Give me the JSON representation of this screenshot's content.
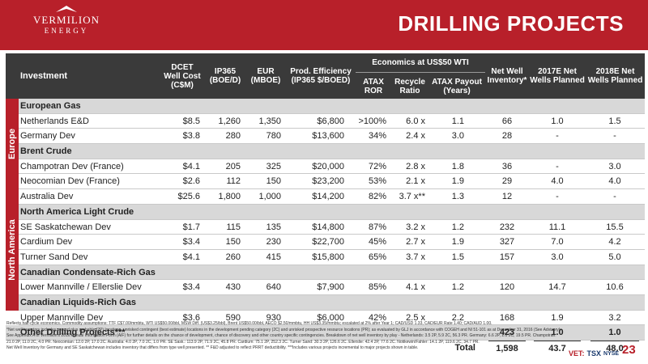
{
  "brand": {
    "name": "VERMILION",
    "sub": "ENERGY"
  },
  "title": "DRILLING PROJECTS",
  "headers": {
    "investment": "Investment",
    "dcet": "DCET\nWell Cost\n(C$M)",
    "ip365": "IP365\n(BOE/D)",
    "eur": "EUR\n(MBOE)",
    "prod_eff": "Prod. Efficiency\n(IP365 $/BOED)",
    "econ_group": "Economics at US$50 WTI",
    "atax_ror": "ATAX\nROR",
    "recycle": "Recycle\nRatio",
    "atax_payout": "ATAX Payout\n(Years)",
    "net_well_inv": "Net Well\nInventory*",
    "e2017": "2017E Net\nWells Planned",
    "e2018": "2018E Net\nWells Planned"
  },
  "regions": {
    "europe": "Europe",
    "north_america": "North America"
  },
  "rows": [
    {
      "type": "section",
      "label": "European Gas"
    },
    {
      "type": "data",
      "label": "Netherlands E&D",
      "dcet": "$8.5",
      "ip365": "1,260",
      "eur": "1,350",
      "prod_eff": "$6,800",
      "ror": ">100%",
      "recycle": "6.0 x",
      "payout": "1.1",
      "inventory": "66",
      "e2017": "1.0",
      "e2018": "1.5"
    },
    {
      "type": "data",
      "label": "Germany Dev",
      "dcet": "$3.8",
      "ip365": "280",
      "eur": "780",
      "prod_eff": "$13,600",
      "ror": "34%",
      "recycle": "2.4 x",
      "payout": "3.0",
      "inventory": "28",
      "e2017": "-",
      "e2018": "-"
    },
    {
      "type": "section",
      "label": "Brent Crude"
    },
    {
      "type": "data",
      "label": "Champotran Dev (France)",
      "dcet": "$4.1",
      "ip365": "205",
      "eur": "325",
      "prod_eff": "$20,000",
      "ror": "72%",
      "recycle": "2.8 x",
      "payout": "1.8",
      "inventory": "36",
      "e2017": "-",
      "e2018": "3.0"
    },
    {
      "type": "data",
      "label": "Neocomian Dev (France)",
      "dcet": "$2.6",
      "ip365": "112",
      "eur": "150",
      "prod_eff": "$23,200",
      "ror": "53%",
      "recycle": "2.1 x",
      "payout": "1.9",
      "inventory": "29",
      "e2017": "4.0",
      "e2018": "4.0"
    },
    {
      "type": "data",
      "label": "Australia Dev",
      "dcet": "$25.6",
      "ip365": "1,800",
      "eur": "1,000",
      "prod_eff": "$14,200",
      "ror": "82%",
      "recycle": "3.7 x**",
      "payout": "1.3",
      "inventory": "12",
      "e2017": "-",
      "e2018": "-"
    },
    {
      "type": "section",
      "label": "North America Light Crude"
    },
    {
      "type": "data",
      "label": "SE Saskatchewan Dev",
      "dcet": "$1.7",
      "ip365": "115",
      "eur": "135",
      "prod_eff": "$14,800",
      "ror": "87%",
      "recycle": "3.2 x",
      "payout": "1.2",
      "inventory": "232",
      "e2017": "11.1",
      "e2018": "15.5"
    },
    {
      "type": "data",
      "label": "Cardium Dev",
      "dcet": "$3.4",
      "ip365": "150",
      "eur": "230",
      "prod_eff": "$22,700",
      "ror": "45%",
      "recycle": "2.7 x",
      "payout": "1.9",
      "inventory": "327",
      "e2017": "7.0",
      "e2018": "4.2"
    },
    {
      "type": "data",
      "label": "Turner Sand Dev",
      "dcet": "$4.1",
      "ip365": "260",
      "eur": "415",
      "prod_eff": "$15,800",
      "ror": "65%",
      "recycle": "3.7 x",
      "payout": "1.5",
      "inventory": "157",
      "e2017": "3.0",
      "e2018": "5.0"
    },
    {
      "type": "section",
      "label": "Canadian Condensate-Rich Gas"
    },
    {
      "type": "data",
      "label": "Lower Mannville / Ellerslie Dev",
      "dcet": "$3.4",
      "ip365": "430",
      "eur": "640",
      "prod_eff": "$7,900",
      "ror": "85%",
      "recycle": "4.1 x",
      "payout": "1.2",
      "inventory": "120",
      "e2017": "14.7",
      "e2018": "10.6"
    },
    {
      "type": "section",
      "label": "Canadian Liquids-Rich Gas"
    },
    {
      "type": "data",
      "label": "Upper Mannville Dev",
      "dcet": "$3.6",
      "ip365": "590",
      "eur": "930",
      "prod_eff": "$6,000",
      "ror": "42%",
      "recycle": "2.5 x",
      "payout": "2.2",
      "inventory": "168",
      "e2017": "1.9",
      "e2018": "3.2"
    },
    {
      "type": "other",
      "label": "Other Drilling Projects***",
      "inventory": "423",
      "e2017": "1.0",
      "e2018": "1.0"
    }
  ],
  "totals": {
    "label": "Total",
    "inventory": "1,598",
    "e2017": "43.7",
    "e2018": "48.0"
  },
  "footnotes": [
    "Reflects half-cycle economics. Commodity assumptions: TTF C$7.00/mmbtu, WTI US$50.00/bbl, MSW Diff. (US$3.25/bbl), Brent US$50.00/bbl, AECO $2.50/mmbtu, HH US$3.35/mmbtu; escalated at 2% after Year 1; CAD/USD 1.33, CAD/EUR Rate 1.40; CAD/AUD 1.00.",
    "*Net well inventory includes proved plus probable (2P) locations, unrisked contingent (best estimate) locations in the development pending category (2C) and unrisked prospective resource locations (PR); as evaluated by GLJ in accordance with COGEH and NI 51-101 as at December 31, 2016 (See Advisory).",
    "See Appendix A of Vermilion's 2016 Annual Information Form (AIF) for further details on the chance of development, chance of discovery and other country specific contingencies. Breakdown of net well inventory by play - Netherlands: 3.5 2P, 5.9 2C, 56.3 PR. Germany: 6.6 2P, 2.0 2C, 19.5 PR. Champotran:",
    "21.0 2P, 11.0 2C, 4.0 PR. Neocomian: 12.0 2P, 17.0 2C. Australia: 4.0 2P, 7.0 2C, 1.0 PR. SE Sask.: 113.9 2P, 71.9 2C, 45.8 PR. Cardium: 75.1 2P, 252.3 2C. Turner Sand: 30.3 2P, 126.6 2C. Ellerslie: 42.4 2P, 77.6 2C. Notikewin/Fahler: 14.1 2P, 119.6 2C, 34.7 PR.",
    "Net Well Inventory for Germany and SE Saskatchewan includes inventory that differs from type well presented.  ** F&D adjusted to reflect PRRT deductibility.  ***Includes various projects incremental to major projects shown in table."
  ],
  "tickers": {
    "vet": "VET:",
    "tsx": "TSX",
    "nyse": "NYSE"
  },
  "page_number": "23",
  "colors": {
    "brand_red": "#b8202a",
    "header_dark": "#3a3a3a",
    "section_gray": "#d8d8d8"
  }
}
